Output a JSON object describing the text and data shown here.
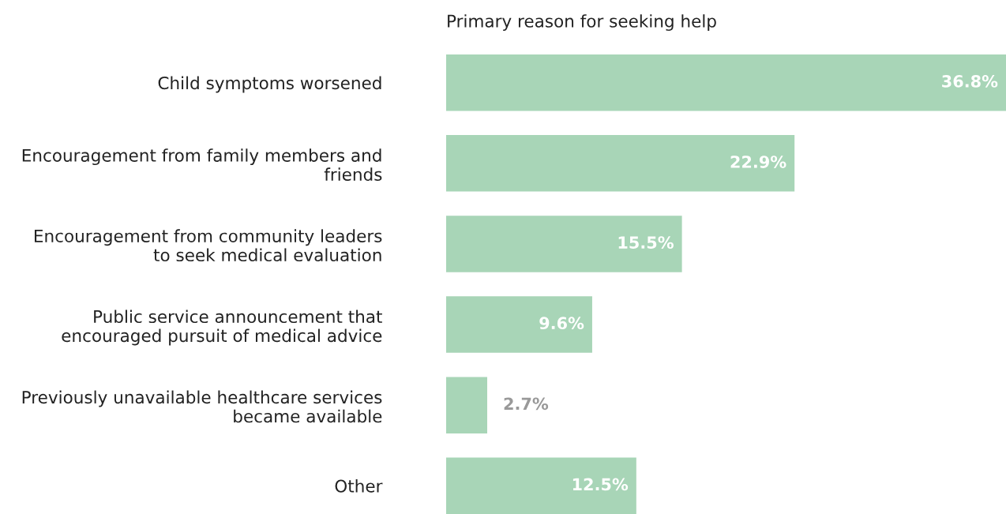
{
  "chart_data": {
    "type": "bar",
    "orientation": "horizontal",
    "title": "Primary reason for seeking help",
    "categories": [
      "Child symptoms worsened",
      "Encouragement from family members and\nfriends",
      "Encouragement from community leaders\nto seek medical evaluation",
      "Public service announcement that\nencouraged pursuit of medical advice",
      "Previously unavailable healthcare services\nbecame available",
      "Other"
    ],
    "values": [
      36.8,
      22.9,
      15.5,
      9.6,
      2.7,
      12.5
    ],
    "value_labels": [
      "36.8%",
      "22.9%",
      "15.5%",
      "9.6%",
      "2.7%",
      "12.5%"
    ],
    "color": "#a8d5b7",
    "xlim": [
      0,
      36.8
    ],
    "tick_labels": "y",
    "grid": false
  }
}
